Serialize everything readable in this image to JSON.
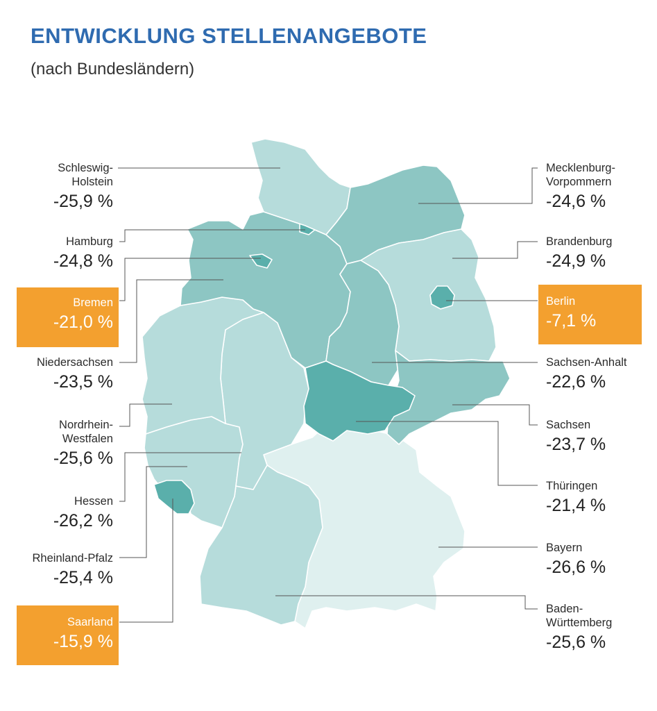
{
  "title": "ENTWICKLUNG STELLENANGEBOTE",
  "subtitle": "(nach Bundesländern)",
  "colors": {
    "title": "#2f6bb0",
    "highlight_box": "#f3a02f",
    "shade_darkest": "#5aafab",
    "shade_dark": "#8dc6c3",
    "shade_light": "#b6dcdb",
    "shade_lightest": "#dff0ef",
    "leader_line": "#555555"
  },
  "states": {
    "schleswig_holstein": {
      "name": "Schleswig-\nHolstein",
      "value": "-25,9 %"
    },
    "hamburg": {
      "name": "Hamburg",
      "value": "-24,8 %"
    },
    "bremen": {
      "name": "Bremen",
      "value": "-21,0 %"
    },
    "niedersachsen": {
      "name": "Niedersachsen",
      "value": "-23,5 %"
    },
    "nordrhein_westfalen": {
      "name": "Nordrhein-\nWestfalen",
      "value": "-25,6 %"
    },
    "hessen": {
      "name": "Hessen",
      "value": "-26,2 %"
    },
    "rheinland_pfalz": {
      "name": "Rheinland-Pfalz",
      "value": "-25,4 %"
    },
    "saarland": {
      "name": "Saarland",
      "value": "-15,9 %"
    },
    "mecklenburg_vorpommern": {
      "name": "Mecklenburg-\nVorpommern",
      "value": "-24,6 %"
    },
    "brandenburg": {
      "name": "Brandenburg",
      "value": "-24,9 %"
    },
    "berlin": {
      "name": "Berlin",
      "value": "-7,1 %"
    },
    "sachsen_anhalt": {
      "name": "Sachsen-Anhalt",
      "value": "-22,6 %"
    },
    "sachsen": {
      "name": "Sachsen",
      "value": "-23,7 %"
    },
    "thueringen": {
      "name": "Thüringen",
      "value": "-21,4 %"
    },
    "bayern": {
      "name": "Bayern",
      "value": "-26,6 %"
    },
    "baden_wuerttemberg": {
      "name": "Baden-\nWürttemberg",
      "value": "-25,6 %"
    }
  }
}
